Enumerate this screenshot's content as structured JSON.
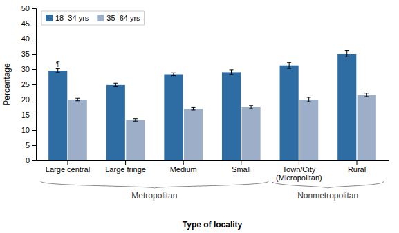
{
  "chart_data": {
    "type": "bar",
    "categories": [
      "Large central",
      "Large fringe",
      "Medium",
      "Small",
      "Town/City\n(Micropolitan)",
      "Rural"
    ],
    "series": [
      {
        "name": "18–34 yrs",
        "color": "#2E6DA4",
        "values": [
          29.5,
          24.8,
          28.3,
          29.0,
          31.2,
          35.0
        ],
        "errors": [
          0.6,
          0.6,
          0.5,
          0.8,
          1.0,
          1.0
        ]
      },
      {
        "name": "35–64 yrs",
        "color": "#9DAEC8",
        "values": [
          20.0,
          13.3,
          17.0,
          17.5,
          20.0,
          21.5
        ],
        "errors": [
          0.4,
          0.4,
          0.4,
          0.5,
          0.7,
          0.6
        ]
      }
    ],
    "ylabel": "Percentage",
    "xlabel": "Type of locality",
    "ylim": [
      0,
      50
    ],
    "yticks": [
      0,
      5,
      10,
      15,
      20,
      25,
      30,
      35,
      40,
      45,
      50
    ],
    "grid": false,
    "legend": "upper left",
    "annotations": [
      {
        "text": "¶",
        "category": "Large central",
        "series": "18–34 yrs"
      }
    ],
    "groups": [
      {
        "label": "Metropolitan",
        "from": "Large central",
        "to": "Small"
      },
      {
        "label": "Nonmetropolitan",
        "from": "Town/City\n(Micropolitan)",
        "to": "Rural"
      }
    ]
  }
}
